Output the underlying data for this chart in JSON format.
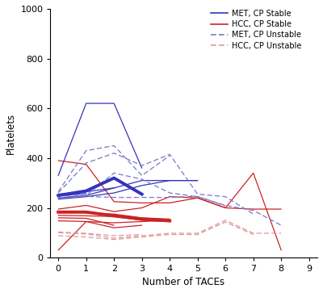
{
  "title": "",
  "xlabel": "Number of TACEs",
  "ylabel": "Platelets",
  "xlim": [
    -0.3,
    9.3
  ],
  "ylim": [
    0,
    1000
  ],
  "yticks": [
    0,
    200,
    400,
    600,
    800,
    1000
  ],
  "xticks": [
    0,
    1,
    2,
    3,
    4,
    5,
    6,
    7,
    8,
    9
  ],
  "met_stable_color": "#3333bb",
  "hcc_stable_color": "#cc2222",
  "met_unstable_color": "#7777cc",
  "hcc_unstable_color": "#dd9999",
  "met_stable_lines": [
    {
      "x": [
        0,
        1,
        2,
        3
      ],
      "y": [
        330,
        620,
        620,
        360
      ]
    },
    {
      "x": [
        0,
        1,
        2,
        3,
        4,
        5
      ],
      "y": [
        240,
        250,
        280,
        310,
        310,
        310
      ]
    },
    {
      "x": [
        0,
        1,
        2,
        3,
        4,
        5
      ],
      "y": [
        235,
        245,
        260,
        290,
        310,
        310
      ]
    },
    {
      "x": [
        0,
        1,
        2
      ],
      "y": [
        255,
        265,
        280
      ]
    },
    {
      "x": [
        0,
        1
      ],
      "y": [
        248,
        258
      ]
    }
  ],
  "hcc_stable_lines": [
    {
      "x": [
        0,
        1,
        2,
        3,
        4,
        5,
        6,
        7,
        8
      ],
      "y": [
        390,
        375,
        225,
        220,
        220,
        240,
        200,
        340,
        30
      ]
    },
    {
      "x": [
        0,
        1,
        2,
        3,
        4,
        5,
        6,
        7,
        8
      ],
      "y": [
        195,
        210,
        185,
        200,
        245,
        240,
        200,
        195,
        195
      ]
    },
    {
      "x": [
        0,
        1,
        2,
        3,
        4
      ],
      "y": [
        185,
        180,
        175,
        160,
        155
      ]
    },
    {
      "x": [
        0,
        1,
        2,
        3,
        4
      ],
      "y": [
        170,
        168,
        165,
        150,
        145
      ]
    },
    {
      "x": [
        0,
        1,
        2
      ],
      "y": [
        160,
        158,
        130
      ]
    },
    {
      "x": [
        0,
        1,
        2,
        3,
        4
      ],
      "y": [
        148,
        145,
        140,
        145,
        150
      ]
    },
    {
      "x": [
        0,
        1,
        2,
        3
      ],
      "y": [
        30,
        145,
        120,
        130
      ]
    }
  ],
  "met_unstable_lines": [
    {
      "x": [
        0,
        1,
        2,
        3,
        4
      ],
      "y": [
        265,
        430,
        450,
        330,
        410
      ]
    },
    {
      "x": [
        0,
        1,
        2,
        3,
        4,
        5,
        6,
        7
      ],
      "y": [
        260,
        380,
        420,
        370,
        415,
        255,
        245,
        175
      ]
    },
    {
      "x": [
        0,
        1,
        2,
        3,
        4,
        5,
        6,
        7,
        8
      ],
      "y": [
        250,
        250,
        340,
        315,
        260,
        245,
        210,
        190,
        130
      ]
    },
    {
      "x": [
        0,
        1,
        2,
        3,
        4,
        5,
        6
      ],
      "y": [
        242,
        246,
        242,
        242,
        242,
        246,
        208
      ]
    }
  ],
  "hcc_unstable_lines": [
    {
      "x": [
        0,
        1,
        2,
        3,
        4,
        5,
        6,
        7,
        8
      ],
      "y": [
        100,
        95,
        78,
        88,
        98,
        98,
        150,
        98,
        98
      ]
    },
    {
      "x": [
        0,
        1,
        2,
        3,
        4,
        5,
        6,
        7
      ],
      "y": [
        88,
        83,
        73,
        83,
        93,
        93,
        143,
        93
      ]
    },
    {
      "x": [
        0,
        1,
        2,
        3
      ],
      "y": [
        103,
        98,
        88,
        93
      ]
    }
  ],
  "met_stable_mean": {
    "x": [
      0,
      1,
      2,
      3
    ],
    "y": [
      250,
      268,
      320,
      255
    ]
  },
  "hcc_stable_mean": {
    "x": [
      0,
      1,
      2,
      3,
      4
    ],
    "y": [
      183,
      183,
      168,
      155,
      148
    ]
  },
  "lw_thin": 0.9,
  "lw_mean": 2.8,
  "bg_color": "#ffffff"
}
